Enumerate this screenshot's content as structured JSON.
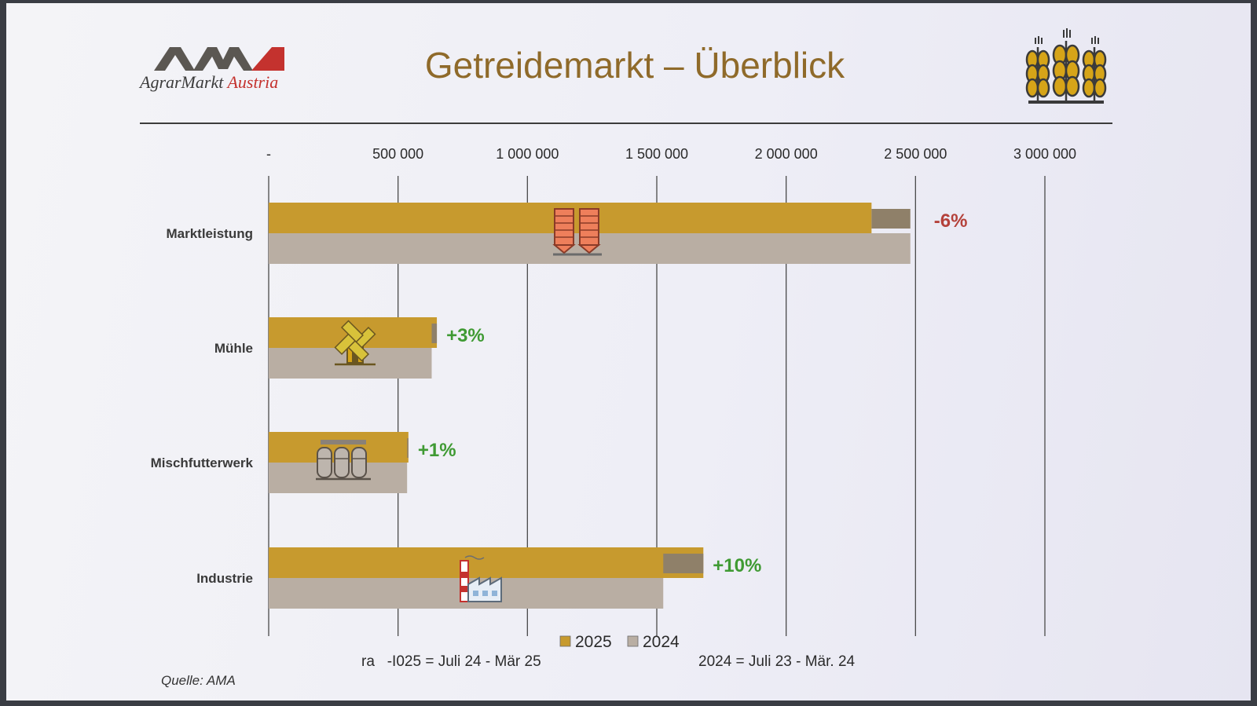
{
  "header": {
    "logo_mark": "AMA",
    "logo_text_main": "AgrarMarkt",
    "logo_text_accent": "Austria",
    "title": "Getreidemarkt – Überblick",
    "wheat_icon": "wheat-icon"
  },
  "chart_data": {
    "type": "bar",
    "orientation": "horizontal",
    "x_tick_values": [
      0,
      500000,
      1000000,
      1500000,
      2000000,
      2500000,
      3000000
    ],
    "x_tick_labels": [
      "-",
      "500 000",
      "1 000 000",
      "1 500 000",
      "2 000 000",
      "2 500 000",
      "3 000 000"
    ],
    "xlim": [
      0,
      3000000
    ],
    "categories": [
      "Marktleistung",
      "Mühle",
      "Mischfutterwerk",
      "Industrie"
    ],
    "series": [
      {
        "name": "2025",
        "color": "#c79a2e",
        "values": [
          2330000,
          650000,
          540000,
          1680000
        ]
      },
      {
        "name": "2024",
        "color": "#b9aea3",
        "values": [
          2480000,
          630000,
          535000,
          1525000
        ]
      }
    ],
    "change_labels": [
      "-6%",
      "+3%",
      "+1%",
      "+10%"
    ],
    "change_colors": [
      "#b4413a",
      "#3f9a33",
      "#3f9a33",
      "#3f9a33"
    ],
    "category_icons": [
      "silo-icon",
      "windmill-icon",
      "feed-mill-icon",
      "factory-icon"
    ],
    "legend_position": "bottom",
    "grid": true
  },
  "footnotes": {
    "left": "ra   -I025 = Juli 24 - Mär 25",
    "right": "2024 = Juli 23 - Mär. 24",
    "source": "Quelle: AMA"
  }
}
